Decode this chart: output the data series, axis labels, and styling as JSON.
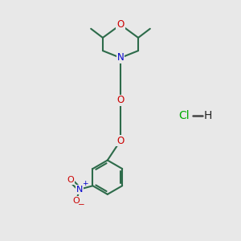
{
  "background_color": "#e8e8e8",
  "bond_color": "#2d6b4a",
  "atom_colors": {
    "O": "#cc0000",
    "N": "#0000cc",
    "Cl": "#00aa00",
    "H": "#222222"
  },
  "line_width": 1.5,
  "font_size": 8.5
}
